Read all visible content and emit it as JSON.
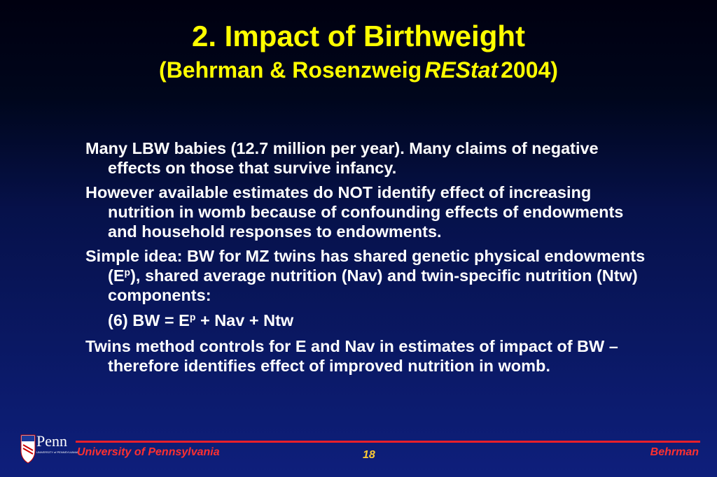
{
  "header": {
    "title": "2. Impact of Birthweight",
    "subtitle": {
      "before": "(Behrman & Rosenzweig",
      "italic": "REStat",
      "after": "2004)"
    }
  },
  "body": [
    {
      "parts": [
        "Many LBW babies (12.7 million per year).  Many claims of negative effects on those that survive infancy."
      ]
    },
    {
      "parts": [
        "However available estimates do NOT identify effect of increasing nutrition in womb because of confounding effects of endowments and household responses to endowments."
      ]
    },
    {
      "parts": [
        "Simple idea: BW for MZ twins has shared genetic physical endowments (E",
        {
          "sup": "p"
        },
        "), shared average nutrition (Nav) and twin-specific nutrition (Ntw) components:"
      ]
    },
    {
      "indent": true,
      "parts": [
        "(6) BW = E",
        {
          "sup": "p"
        },
        " + Nav + Ntw"
      ]
    },
    {
      "parts": [
        "Twins method controls for E and Nav in estimates of impact of BW – therefore identifies effect of improved nutrition in womb."
      ]
    }
  ],
  "footer": {
    "logo": "Penn",
    "logo_sub": "UNIVERSITY of PENNSYLVANIA",
    "left": "University of Pennsylvania",
    "page": "18",
    "right": "Behrman"
  }
}
